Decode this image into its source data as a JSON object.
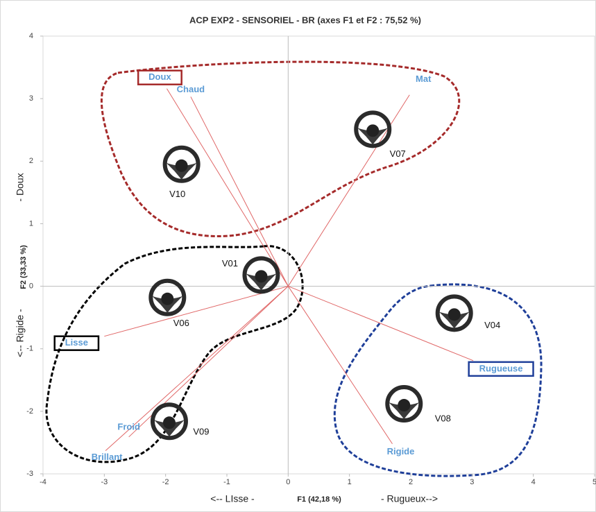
{
  "chart_data": {
    "type": "biplot",
    "title": "ACP  EXP2 - SENSORIEL -  BR (axes F1 et F2 : 75,52 %)",
    "x_labels": [
      "<-- LIsse -",
      "F1 (42,18 %)",
      "- Rugueux-->"
    ],
    "y_labels": [
      "<-- Rigide -",
      "F2 (33,33 %)",
      "- Doux"
    ],
    "xlim": [
      -4,
      5
    ],
    "ylim": [
      -3,
      4
    ],
    "xticks": [
      -4,
      -3,
      -2,
      -1,
      0,
      1,
      2,
      3,
      4,
      5
    ],
    "yticks": [
      -3,
      -2,
      -1,
      0,
      1,
      2,
      3,
      4
    ],
    "variables": {
      "color": "#e06666",
      "label_color": "#5b9bd5",
      "names": [
        "Doux",
        "Chaud",
        "Mat",
        "Lisse",
        "Brillant",
        "Froid",
        "Rugueuse",
        "Rigide"
      ],
      "x": [
        -1.98,
        -1.59,
        1.98,
        -3.0,
        -2.98,
        -2.6,
        3.02,
        1.7
      ],
      "y": [
        3.16,
        3.03,
        3.06,
        -0.8,
        -2.63,
        -2.41,
        -1.19,
        -2.52
      ],
      "box_colors": [
        "#a52a2a",
        null,
        null,
        "#000000",
        null,
        null,
        "#1f3f99",
        null
      ]
    },
    "observations": {
      "names": [
        "V01",
        "V06",
        "V10",
        "V07",
        "V04",
        "V08",
        "V09"
      ],
      "x": [
        -0.44,
        -1.97,
        -1.74,
        1.38,
        2.71,
        1.89,
        -1.94
      ],
      "y": [
        0.18,
        -0.18,
        1.95,
        2.51,
        -0.43,
        -1.88,
        -2.16
      ]
    }
  }
}
